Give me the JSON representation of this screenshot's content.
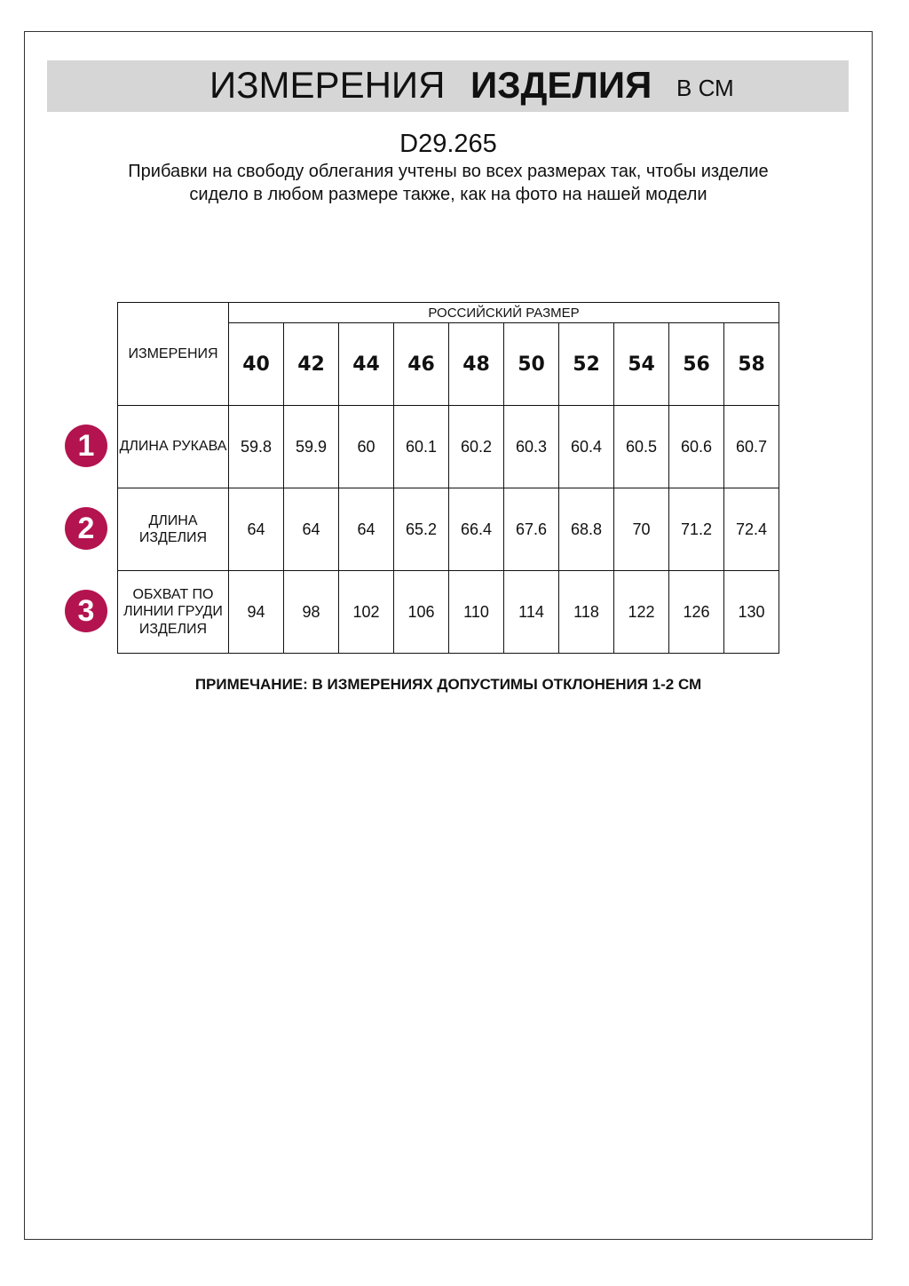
{
  "header": {
    "title_regular": "ИЗМЕРЕНИЯ",
    "title_bold": "ИЗДЕЛИЯ",
    "unit": "В СМ"
  },
  "article": "D29.265",
  "subtitle": "Прибавки на свободу облегания учтены во всех размерах так, чтобы изделие сидело в любом размере также, как на фото на нашей модели",
  "table": {
    "corner_label": "ИЗМЕРЕНИЯ",
    "group_label": "РОССИЙСКИЙ РАЗМЕР",
    "sizes": [
      "40",
      "42",
      "44",
      "46",
      "48",
      "50",
      "52",
      "54",
      "56",
      "58"
    ],
    "rows": [
      {
        "badge": "1",
        "label": "ДЛИНА РУКАВА",
        "values": [
          "59.8",
          "59.9",
          "60",
          "60.1",
          "60.2",
          "60.3",
          "60.4",
          "60.5",
          "60.6",
          "60.7"
        ]
      },
      {
        "badge": "2",
        "label": "ДЛИНА ИЗДЕЛИЯ",
        "values": [
          "64",
          "64",
          "64",
          "65.2",
          "66.4",
          "67.6",
          "68.8",
          "70",
          "71.2",
          "72.4"
        ]
      },
      {
        "badge": "3",
        "label": "ОБХВАТ ПО ЛИНИИ ГРУДИ ИЗДЕЛИЯ",
        "values": [
          "94",
          "98",
          "102",
          "106",
          "110",
          "114",
          "118",
          "122",
          "126",
          "130"
        ]
      }
    ]
  },
  "note": "ПРИМЕЧАНИЕ: В ИЗМЕРЕНИЯХ ДОПУСТИМЫ ОТКЛОНЕНИЯ 1-2 СМ",
  "colors": {
    "badge": "#b3134f",
    "title_bar": "#d6d6d6"
  }
}
